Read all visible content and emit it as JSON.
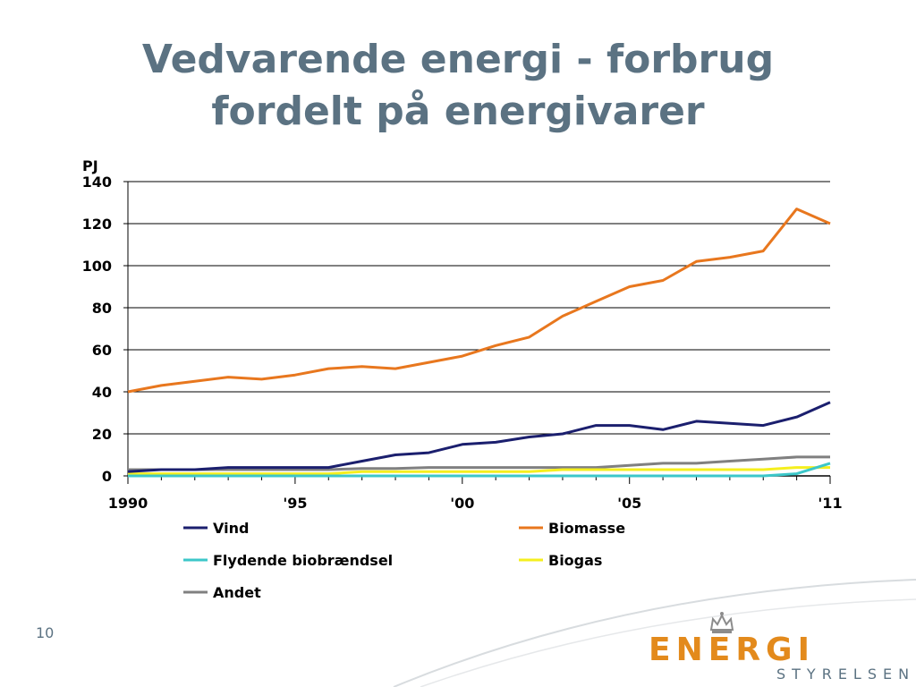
{
  "slide": {
    "title_line1": "Vedvarende energi - forbrug",
    "title_line2": "fordelt på energivarer",
    "page_number": "10"
  },
  "logo": {
    "main_text": "ENERGI",
    "sub_text": "STYRELSEN",
    "icon": "crown-icon",
    "colors": {
      "main": "#e38a1c",
      "sub": "#5b7282"
    }
  },
  "chart_data": {
    "type": "line",
    "ylabel": "PJ",
    "ylim": [
      0,
      140
    ],
    "yticks": [
      0,
      20,
      40,
      60,
      80,
      100,
      120,
      140
    ],
    "xlim": [
      1990,
      2011
    ],
    "xtick_values": [
      1990,
      1995,
      2000,
      2005,
      2011
    ],
    "xtick_labels": [
      "1990",
      "'95",
      "'00",
      "'05",
      "'11"
    ],
    "x": [
      1990,
      1991,
      1992,
      1993,
      1994,
      1995,
      1996,
      1997,
      1998,
      1999,
      2000,
      2001,
      2002,
      2003,
      2004,
      2005,
      2006,
      2007,
      2008,
      2009,
      2010,
      2011
    ],
    "grid": "horizontal",
    "legend_position": "bottom",
    "series": [
      {
        "name": "Vind",
        "color": "#1b1f6e",
        "values": [
          2,
          3,
          3,
          4,
          4,
          4,
          4,
          7,
          10,
          11,
          15,
          16,
          18.5,
          20,
          24,
          24,
          22,
          26,
          25,
          24,
          28,
          35
        ]
      },
      {
        "name": "Biomasse",
        "color": "#e8771e",
        "values": [
          40,
          43,
          45,
          47,
          46,
          48,
          51,
          52,
          51,
          54,
          57,
          62,
          66,
          76,
          83,
          90,
          93,
          102,
          104,
          107,
          127,
          120
        ]
      },
      {
        "name": "Flydende biobrændsel",
        "color": "#3cc7c9",
        "values": [
          0,
          0,
          0,
          0,
          0,
          0,
          0,
          0,
          0,
          0,
          0,
          0,
          0,
          0,
          0,
          0,
          0,
          0,
          0,
          0,
          1,
          6
        ]
      },
      {
        "name": "Biogas",
        "color": "#f5ef1e",
        "values": [
          1,
          1,
          1,
          1,
          1,
          1,
          1,
          2,
          2,
          2,
          2,
          2,
          2,
          3,
          3,
          3,
          3,
          3,
          3,
          3,
          4,
          4
        ]
      },
      {
        "name": "Andet",
        "color": "#808080",
        "values": [
          3,
          3,
          3,
          3,
          3,
          3,
          3,
          3.5,
          3.5,
          4,
          4,
          4,
          4,
          4,
          4,
          5,
          6,
          6,
          7,
          8,
          9,
          9
        ]
      }
    ]
  }
}
